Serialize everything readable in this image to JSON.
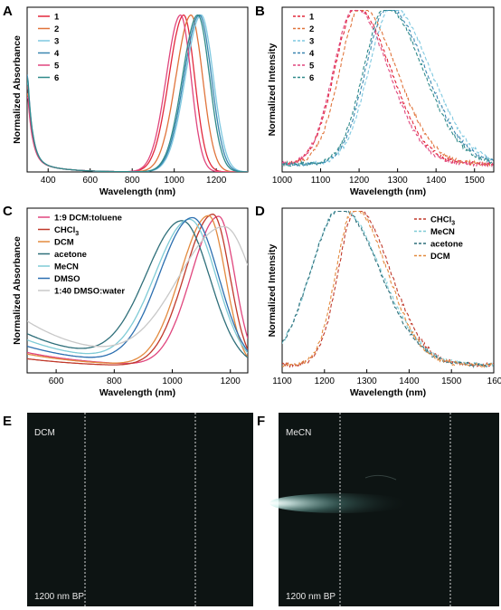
{
  "colors": {
    "c1": "#e2283c",
    "c2": "#e0733a",
    "c3": "#7ec8e0",
    "c4": "#3a86b0",
    "c5": "#e0457d",
    "c6": "#2f8a8a",
    "chcl3": "#c0392b",
    "dcm": "#e38a3e",
    "acetone": "#2f6f7a",
    "mecn": "#7fcbd6",
    "dmso": "#2c6fb0",
    "dmso_water": "#c8c8c8",
    "toluene": "#e0457d",
    "image_bg": "#0d1413"
  },
  "chart_data": [
    {
      "panel": "A",
      "type": "line",
      "xlabel": "Wavelength (nm)",
      "ylabel": "Normalized Absorbance",
      "xlim": [
        300,
        1350
      ],
      "ylim": [
        0,
        1.05
      ],
      "xticks": [
        400,
        600,
        800,
        1000,
        1200
      ],
      "legend_position": "top-left",
      "series": [
        {
          "name": "1",
          "color": "c1",
          "peak": 1045,
          "sigma_left": 70,
          "sigma_right": 52,
          "uv": 0.55
        },
        {
          "name": "2",
          "color": "c2",
          "peak": 1080,
          "sigma_left": 72,
          "sigma_right": 55,
          "uv": 0.5
        },
        {
          "name": "3",
          "color": "c3",
          "peak": 1128,
          "sigma_left": 75,
          "sigma_right": 58,
          "uv": 0.58
        },
        {
          "name": "4",
          "color": "c4",
          "peak": 1120,
          "sigma_left": 74,
          "sigma_right": 57,
          "uv": 0.62
        },
        {
          "name": "5",
          "color": "c5",
          "peak": 1030,
          "sigma_left": 68,
          "sigma_right": 50,
          "uv": 0.48
        },
        {
          "name": "6",
          "color": "c6",
          "peak": 1112,
          "sigma_left": 73,
          "sigma_right": 56,
          "uv": 0.6
        }
      ]
    },
    {
      "panel": "B",
      "type": "line",
      "xlabel": "Wavelength (nm)",
      "ylabel": "Normalized Intensity",
      "xlim": [
        1000,
        1550
      ],
      "ylim": [
        0,
        1.05
      ],
      "xticks": [
        1000,
        1100,
        1200,
        1300,
        1400,
        1500
      ],
      "dashed": true,
      "legend_position": "top-right",
      "series": [
        {
          "name": "1",
          "color": "c1",
          "peak": 1192,
          "sigma_left": 55,
          "sigma_right": 90
        },
        {
          "name": "2",
          "color": "c2",
          "peak": 1205,
          "sigma_left": 55,
          "sigma_right": 92
        },
        {
          "name": "3",
          "color": "c3",
          "peak": 1285,
          "sigma_left": 60,
          "sigma_right": 100
        },
        {
          "name": "4",
          "color": "c4",
          "peak": 1275,
          "sigma_left": 58,
          "sigma_right": 98
        },
        {
          "name": "5",
          "color": "c5",
          "peak": 1188,
          "sigma_left": 54,
          "sigma_right": 88
        },
        {
          "name": "6",
          "color": "c6",
          "peak": 1270,
          "sigma_left": 58,
          "sigma_right": 96
        }
      ]
    },
    {
      "panel": "C",
      "type": "line",
      "xlabel": "Wavelength (nm)",
      "ylabel": "Normalized Absorbance",
      "xlim": [
        500,
        1260
      ],
      "ylim": [
        0,
        1.05
      ],
      "xticks": [
        600,
        800,
        1000,
        1200
      ],
      "legend_position": "top-left",
      "series": [
        {
          "name": "1:9 DCM:toluene",
          "color": "toluene",
          "peak": 1160,
          "sigma_left": 95,
          "sigma_right": 55,
          "uv": 0.1
        },
        {
          "name": "CHCl3",
          "label_main": "CHCl",
          "label_sub": "3",
          "color": "chcl3",
          "peak": 1140,
          "sigma_left": 98,
          "sigma_right": 58,
          "uv": 0.06
        },
        {
          "name": "DCM",
          "color": "dcm",
          "peak": 1125,
          "sigma_left": 98,
          "sigma_right": 58,
          "uv": 0.09
        },
        {
          "name": "acetone",
          "color": "acetone",
          "peak": 1035,
          "sigma_left": 125,
          "sigma_right": 95,
          "uv": 0.22
        },
        {
          "name": "MeCN",
          "color": "mecn",
          "peak": 1060,
          "sigma_left": 120,
          "sigma_right": 92,
          "uv": 0.18
        },
        {
          "name": "DMSO",
          "color": "dmso",
          "peak": 1070,
          "sigma_left": 115,
          "sigma_right": 90,
          "uv": 0.14
        },
        {
          "name": "1:40 DMSO:water",
          "color": "dmso_water",
          "peak": 1180,
          "sigma_left": 160,
          "sigma_right": 100,
          "uv": 0.3
        }
      ]
    },
    {
      "panel": "D",
      "type": "line",
      "xlabel": "Wavelength (nm)",
      "ylabel": "Normalized Intensity",
      "xlim": [
        1100,
        1600
      ],
      "ylim": [
        0,
        1.05
      ],
      "xticks": [
        1100,
        1200,
        1300,
        1400,
        1500
      ],
      "xtick_last_label": "160",
      "dashed": true,
      "legend_position": "top-right",
      "series": [
        {
          "name": "CHCl3",
          "label_main": "CHCl",
          "label_sub": "3",
          "color": "chcl3",
          "peak": 1275,
          "sigma_left": 42,
          "sigma_right": 80
        },
        {
          "name": "MeCN",
          "color": "mecn",
          "peak": 1238,
          "sigma_left": 70,
          "sigma_right": 95
        },
        {
          "name": "acetone",
          "color": "acetone",
          "peak": 1238,
          "sigma_left": 70,
          "sigma_right": 92
        },
        {
          "name": "DCM",
          "color": "dcm",
          "peak": 1270,
          "sigma_left": 42,
          "sigma_right": 78
        }
      ]
    }
  ],
  "images": [
    {
      "panel": "E",
      "solvent": "DCM",
      "filter": "1200 nm BP"
    },
    {
      "panel": "F",
      "solvent": "MeCN",
      "filter": "1200 nm BP"
    }
  ]
}
